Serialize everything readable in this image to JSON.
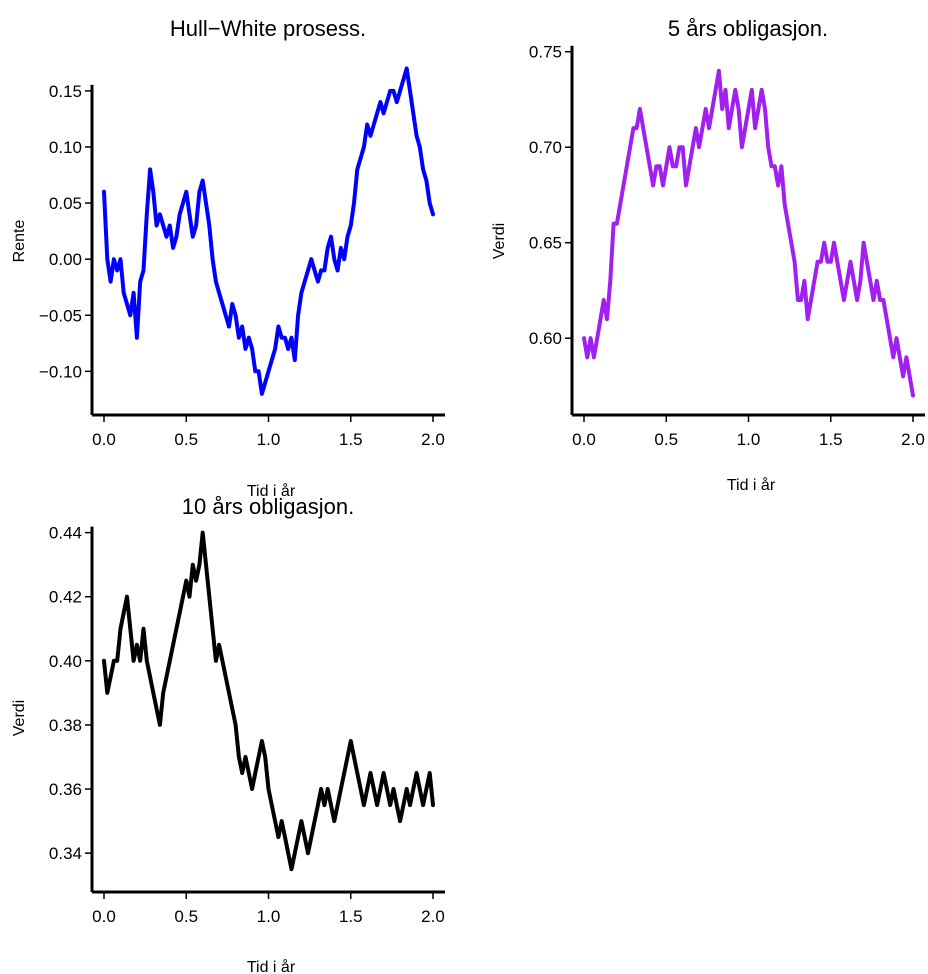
{
  "chart_data": [
    {
      "type": "line",
      "title": "Hull−White prosess.",
      "xlabel": "Tid i år",
      "ylabel": "Rente",
      "xlim": [
        0,
        2
      ],
      "ylim": [
        -0.13,
        0.19
      ],
      "xticks": [
        "0.0",
        "0.5",
        "1.0",
        "1.5",
        "2.0"
      ],
      "yticks": [
        "−0.10",
        "−0.05",
        "0.00",
        "0.05",
        "0.10",
        "0.15"
      ],
      "color": "#0000ff",
      "series": [
        {
          "x": [
            0.0,
            0.02,
            0.04,
            0.06,
            0.08,
            0.1,
            0.12,
            0.14,
            0.16,
            0.18,
            0.2,
            0.22,
            0.24,
            0.26,
            0.28,
            0.3,
            0.32,
            0.34,
            0.36,
            0.38,
            0.4,
            0.42,
            0.44,
            0.46,
            0.48,
            0.5,
            0.52,
            0.54,
            0.56,
            0.58,
            0.6,
            0.62,
            0.64,
            0.66,
            0.68,
            0.7,
            0.72,
            0.74,
            0.76,
            0.78,
            0.8,
            0.82,
            0.84,
            0.86,
            0.88,
            0.9,
            0.92,
            0.94,
            0.96,
            0.98,
            1.0,
            1.02,
            1.04,
            1.06,
            1.08,
            1.1,
            1.12,
            1.14,
            1.16,
            1.18,
            1.2,
            1.22,
            1.24,
            1.26,
            1.28,
            1.3,
            1.32,
            1.34,
            1.36,
            1.38,
            1.4,
            1.42,
            1.44,
            1.46,
            1.48,
            1.5,
            1.52,
            1.54,
            1.56,
            1.58,
            1.6,
            1.62,
            1.64,
            1.66,
            1.68,
            1.7,
            1.72,
            1.74,
            1.76,
            1.78,
            1.8,
            1.82,
            1.84,
            1.86,
            1.88,
            1.9,
            1.92,
            1.94,
            1.96,
            1.98,
            2.0
          ],
          "values": [
            0.06,
            0.0,
            -0.02,
            0.0,
            -0.01,
            0.0,
            -0.03,
            -0.04,
            -0.05,
            -0.03,
            -0.07,
            -0.02,
            -0.01,
            0.04,
            0.08,
            0.06,
            0.03,
            0.04,
            0.03,
            0.02,
            0.03,
            0.01,
            0.02,
            0.04,
            0.05,
            0.06,
            0.04,
            0.02,
            0.03,
            0.06,
            0.07,
            0.05,
            0.03,
            0.0,
            -0.02,
            -0.03,
            -0.04,
            -0.05,
            -0.06,
            -0.04,
            -0.05,
            -0.07,
            -0.06,
            -0.08,
            -0.07,
            -0.08,
            -0.1,
            -0.1,
            -0.12,
            -0.11,
            -0.1,
            -0.09,
            -0.08,
            -0.06,
            -0.07,
            -0.07,
            -0.08,
            -0.07,
            -0.09,
            -0.05,
            -0.03,
            -0.02,
            -0.01,
            0.0,
            -0.01,
            -0.02,
            -0.01,
            -0.01,
            0.01,
            0.02,
            0.0,
            -0.01,
            0.01,
            0.0,
            0.02,
            0.03,
            0.05,
            0.08,
            0.09,
            0.1,
            0.12,
            0.11,
            0.12,
            0.13,
            0.14,
            0.13,
            0.14,
            0.15,
            0.15,
            0.14,
            0.15,
            0.16,
            0.17,
            0.15,
            0.13,
            0.11,
            0.1,
            0.08,
            0.07,
            0.05,
            0.04
          ]
        }
      ]
    },
    {
      "type": "line",
      "title": "5 års obligasjon.",
      "xlabel": "Tid i år",
      "ylabel": "Verdi",
      "xlim": [
        0,
        2
      ],
      "ylim": [
        0.565,
        0.753
      ],
      "xticks": [
        "0.0",
        "0.5",
        "1.0",
        "1.5",
        "2.0"
      ],
      "yticks": [
        "0.60",
        "0.65",
        "0.70",
        "0.75"
      ],
      "color": "#a020f0",
      "series": [
        {
          "x": [
            0.0,
            0.02,
            0.04,
            0.06,
            0.08,
            0.1,
            0.12,
            0.14,
            0.16,
            0.18,
            0.2,
            0.22,
            0.24,
            0.26,
            0.28,
            0.3,
            0.32,
            0.34,
            0.36,
            0.38,
            0.4,
            0.42,
            0.44,
            0.46,
            0.48,
            0.5,
            0.52,
            0.54,
            0.56,
            0.58,
            0.6,
            0.62,
            0.64,
            0.66,
            0.68,
            0.7,
            0.72,
            0.74,
            0.76,
            0.78,
            0.8,
            0.82,
            0.84,
            0.86,
            0.88,
            0.9,
            0.92,
            0.94,
            0.96,
            0.98,
            1.0,
            1.02,
            1.04,
            1.06,
            1.08,
            1.1,
            1.12,
            1.14,
            1.16,
            1.18,
            1.2,
            1.22,
            1.24,
            1.26,
            1.28,
            1.3,
            1.32,
            1.34,
            1.36,
            1.38,
            1.4,
            1.42,
            1.44,
            1.46,
            1.48,
            1.5,
            1.52,
            1.54,
            1.56,
            1.58,
            1.6,
            1.62,
            1.64,
            1.66,
            1.68,
            1.7,
            1.72,
            1.74,
            1.76,
            1.78,
            1.8,
            1.82,
            1.84,
            1.86,
            1.88,
            1.9,
            1.92,
            1.94,
            1.96,
            1.98,
            2.0
          ],
          "values": [
            0.6,
            0.59,
            0.6,
            0.59,
            0.6,
            0.61,
            0.62,
            0.61,
            0.63,
            0.66,
            0.66,
            0.67,
            0.68,
            0.69,
            0.7,
            0.71,
            0.71,
            0.72,
            0.71,
            0.7,
            0.69,
            0.68,
            0.69,
            0.69,
            0.68,
            0.69,
            0.7,
            0.69,
            0.69,
            0.7,
            0.7,
            0.68,
            0.69,
            0.7,
            0.71,
            0.7,
            0.71,
            0.72,
            0.71,
            0.72,
            0.73,
            0.74,
            0.72,
            0.73,
            0.71,
            0.72,
            0.73,
            0.72,
            0.7,
            0.71,
            0.72,
            0.73,
            0.71,
            0.72,
            0.73,
            0.72,
            0.7,
            0.69,
            0.69,
            0.68,
            0.69,
            0.67,
            0.66,
            0.65,
            0.64,
            0.62,
            0.62,
            0.63,
            0.61,
            0.62,
            0.63,
            0.64,
            0.64,
            0.65,
            0.64,
            0.64,
            0.65,
            0.64,
            0.63,
            0.62,
            0.63,
            0.64,
            0.63,
            0.62,
            0.63,
            0.65,
            0.64,
            0.63,
            0.62,
            0.63,
            0.62,
            0.62,
            0.61,
            0.6,
            0.59,
            0.6,
            0.59,
            0.58,
            0.59,
            0.58,
            0.57
          ]
        }
      ]
    },
    {
      "type": "line",
      "title": "10 års obligasjon.",
      "xlabel": "Tid i år",
      "ylabel": "Verdi",
      "xlim": [
        0,
        2
      ],
      "ylim": [
        0.331,
        0.443
      ],
      "xticks": [
        "0.0",
        "0.5",
        "1.0",
        "1.5",
        "2.0"
      ],
      "yticks": [
        "0.34",
        "0.36",
        "0.38",
        "0.40",
        "0.42",
        "0.44"
      ],
      "color": "#000000",
      "series": [
        {
          "x": [
            0.0,
            0.02,
            0.04,
            0.06,
            0.08,
            0.1,
            0.12,
            0.14,
            0.16,
            0.18,
            0.2,
            0.22,
            0.24,
            0.26,
            0.28,
            0.3,
            0.32,
            0.34,
            0.36,
            0.38,
            0.4,
            0.42,
            0.44,
            0.46,
            0.48,
            0.5,
            0.52,
            0.54,
            0.56,
            0.58,
            0.6,
            0.62,
            0.64,
            0.66,
            0.68,
            0.7,
            0.72,
            0.74,
            0.76,
            0.78,
            0.8,
            0.82,
            0.84,
            0.86,
            0.88,
            0.9,
            0.92,
            0.94,
            0.96,
            0.98,
            1.0,
            1.02,
            1.04,
            1.06,
            1.08,
            1.1,
            1.12,
            1.14,
            1.16,
            1.18,
            1.2,
            1.22,
            1.24,
            1.26,
            1.28,
            1.3,
            1.32,
            1.34,
            1.36,
            1.38,
            1.4,
            1.42,
            1.44,
            1.46,
            1.48,
            1.5,
            1.52,
            1.54,
            1.56,
            1.58,
            1.6,
            1.62,
            1.64,
            1.66,
            1.68,
            1.7,
            1.72,
            1.74,
            1.76,
            1.78,
            1.8,
            1.82,
            1.84,
            1.86,
            1.88,
            1.9,
            1.92,
            1.94,
            1.96,
            1.98,
            2.0
          ],
          "values": [
            0.4,
            0.39,
            0.395,
            0.4,
            0.4,
            0.41,
            0.415,
            0.42,
            0.41,
            0.4,
            0.405,
            0.4,
            0.41,
            0.4,
            0.395,
            0.39,
            0.385,
            0.38,
            0.39,
            0.395,
            0.4,
            0.405,
            0.41,
            0.415,
            0.42,
            0.425,
            0.42,
            0.43,
            0.425,
            0.43,
            0.44,
            0.43,
            0.42,
            0.41,
            0.4,
            0.405,
            0.4,
            0.395,
            0.39,
            0.385,
            0.38,
            0.37,
            0.365,
            0.37,
            0.365,
            0.36,
            0.365,
            0.37,
            0.375,
            0.37,
            0.36,
            0.355,
            0.35,
            0.345,
            0.35,
            0.345,
            0.34,
            0.335,
            0.34,
            0.345,
            0.35,
            0.345,
            0.34,
            0.345,
            0.35,
            0.355,
            0.36,
            0.355,
            0.36,
            0.355,
            0.35,
            0.355,
            0.36,
            0.365,
            0.37,
            0.375,
            0.37,
            0.365,
            0.36,
            0.355,
            0.36,
            0.365,
            0.36,
            0.355,
            0.36,
            0.365,
            0.36,
            0.355,
            0.36,
            0.355,
            0.35,
            0.355,
            0.36,
            0.355,
            0.36,
            0.365,
            0.36,
            0.355,
            0.36,
            0.365,
            0.355
          ]
        }
      ]
    }
  ]
}
